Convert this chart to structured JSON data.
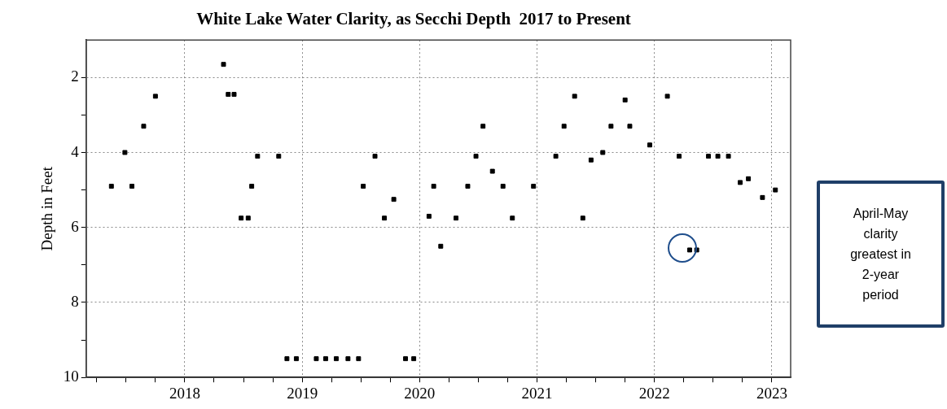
{
  "chart_data": {
    "type": "scatter",
    "title": "White Lake Water Clarity, as Secchi Depth  2017 to Present",
    "ylabel": "Depth in Feet",
    "x": [
      2017.375,
      2017.49,
      2017.55,
      2017.65,
      2017.75,
      2018.33,
      2018.37,
      2018.42,
      2018.48,
      2018.54,
      2018.57,
      2018.62,
      2018.8,
      2018.87,
      2018.95,
      2019.12,
      2019.2,
      2019.29,
      2019.39,
      2019.48,
      2019.52,
      2019.62,
      2019.7,
      2019.78,
      2019.88,
      2019.95,
      2020.08,
      2020.12,
      2020.18,
      2020.31,
      2020.41,
      2020.48,
      2020.54,
      2020.62,
      2020.71,
      2020.79,
      2020.97,
      2021.16,
      2021.23,
      2021.32,
      2021.39,
      2021.46,
      2021.56,
      2021.63,
      2021.75,
      2021.79,
      2021.96,
      2022.11,
      2022.21,
      2022.3,
      2022.36,
      2022.46,
      2022.54,
      2022.63,
      2022.73,
      2022.8,
      2022.92,
      2023.03
    ],
    "series": [
      {
        "color": "#000000",
        "values": [
          4.9,
          4.0,
          4.9,
          3.3,
          2.5,
          1.65,
          2.45,
          2.45,
          5.75,
          5.75,
          4.9,
          4.1,
          4.1,
          9.5,
          9.5,
          9.5,
          9.5,
          9.5,
          9.5,
          9.5,
          4.9,
          4.1,
          5.75,
          5.25,
          9.5,
          9.5,
          5.7,
          4.9,
          6.5,
          5.75,
          4.9,
          4.1,
          3.3,
          4.5,
          4.9,
          5.75,
          4.9,
          4.1,
          3.3,
          2.5,
          5.75,
          4.2,
          4.0,
          3.3,
          2.6,
          3.3,
          3.8,
          2.5,
          4.1,
          6.6,
          6.6,
          4.1,
          4.1,
          4.1,
          4.8,
          4.7,
          5.2,
          5.0
        ]
      }
    ],
    "marker": "square",
    "grid": true,
    "xlim": [
      2017.16,
      2023.16
    ],
    "xticks": [
      {
        "value": 2017.25,
        "label": null
      },
      {
        "value": 2017.5,
        "label": null
      },
      {
        "value": 2017.75,
        "label": null
      },
      2018,
      {
        "value": 2018.25,
        "label": null
      },
      {
        "value": 2018.5,
        "label": null
      },
      {
        "value": 2018.75,
        "label": null
      },
      2019,
      {
        "value": 2019.25,
        "label": null
      },
      {
        "value": 2019.5,
        "label": null
      },
      {
        "value": 2019.75,
        "label": null
      },
      2020,
      {
        "value": 2020.25,
        "label": null
      },
      {
        "value": 2020.5,
        "label": null
      },
      {
        "value": 2020.75,
        "label": null
      },
      2021,
      {
        "value": 2021.25,
        "label": null
      },
      {
        "value": 2021.5,
        "label": null
      },
      {
        "value": 2021.75,
        "label": null
      },
      2022,
      {
        "value": 2022.25,
        "label": null
      },
      {
        "value": 2022.5,
        "label": null
      },
      {
        "value": 2022.75,
        "label": null
      },
      2023
    ],
    "ylim": [
      10,
      1
    ],
    "yticks": [
      2,
      {
        "value": 3,
        "label": null
      },
      4,
      {
        "value": 5,
        "label": null
      },
      6,
      {
        "value": 7,
        "label": null
      },
      8,
      {
        "value": 9,
        "label": null
      },
      10
    ],
    "annotations": [
      "April-May clarity greatest in 2-year period"
    ]
  }
}
